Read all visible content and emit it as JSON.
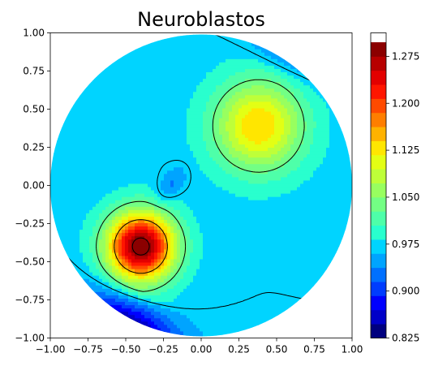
{
  "chart_data": {
    "type": "heatmap",
    "subtype": "filled-contour",
    "title": "Neuroblastos",
    "xlabel": "",
    "ylabel": "",
    "xlim": [
      -1.0,
      1.0
    ],
    "ylim": [
      -1.0,
      1.0
    ],
    "domain_shape": "unit disk",
    "x_ticks": [
      "−1.00",
      "−0.75",
      "−0.50",
      "−0.25",
      "0.00",
      "0.25",
      "0.50",
      "0.75",
      "1.00"
    ],
    "y_ticks": [
      "−1.00",
      "−0.75",
      "−0.50",
      "−0.25",
      "0.00",
      "0.25",
      "0.50",
      "0.75",
      "1.00"
    ],
    "x_tick_values": [
      -1.0,
      -0.75,
      -0.5,
      -0.25,
      0.0,
      0.25,
      0.5,
      0.75,
      1.0
    ],
    "y_tick_values": [
      -1.0,
      -0.75,
      -0.5,
      -0.25,
      0.0,
      0.25,
      0.5,
      0.75,
      1.0
    ],
    "colorbar": {
      "range": [
        0.825,
        1.3125
      ],
      "levels": [
        0.825,
        0.8475,
        0.87,
        0.8925,
        0.915,
        0.9375,
        0.96,
        0.9825,
        1.005,
        1.0275,
        1.05,
        1.0725,
        1.095,
        1.1175,
        1.14,
        1.1625,
        1.185,
        1.2075,
        1.23,
        1.2525,
        1.275,
        1.2975,
        1.3125
      ],
      "colors": [
        "#00007f",
        "#0000c8",
        "#0000ff",
        "#003cff",
        "#0070ff",
        "#00a4ff",
        "#00d4ff",
        "#29ffce",
        "#4effa9",
        "#73ff84",
        "#98ff5f",
        "#beff39",
        "#e3ff14",
        "#ffe600",
        "#ffb200",
        "#ff7e00",
        "#ff4a00",
        "#ff1600",
        "#e30000",
        "#b70000",
        "#8b0000"
      ],
      "tick_values": [
        0.825,
        0.9,
        0.975,
        1.05,
        1.125,
        1.2,
        1.275
      ],
      "tick_labels": [
        "0.825",
        "0.900",
        "0.975",
        "1.050",
        "1.125",
        "1.200",
        "1.275"
      ],
      "colormap": "jet"
    },
    "field": {
      "background_value": 0.97,
      "peaks": [
        {
          "x": -0.4,
          "y": -0.4,
          "amplitude": 0.33,
          "sigma": 0.16,
          "peak_value": 1.3
        },
        {
          "x": 0.38,
          "y": 0.39,
          "amplitude": 0.17,
          "sigma": 0.21,
          "peak_value": 1.14
        }
      ],
      "low_regions": [
        {
          "x": -0.2,
          "y": 0.0,
          "value": 0.94
        },
        {
          "x": -0.6,
          "y": -0.85,
          "value": 0.85
        },
        {
          "x": 0.65,
          "y": 0.85,
          "value": 0.94
        }
      ]
    },
    "contour_lines": [
      0.97,
      1.03,
      1.15,
      1.28
    ],
    "contour_color": "#000000"
  }
}
